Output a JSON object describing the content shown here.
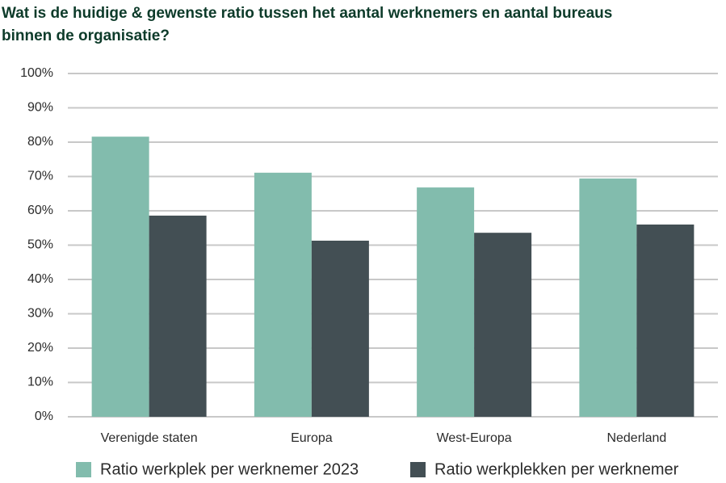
{
  "chart_data": {
    "type": "bar",
    "title": [
      "Wat is de huidige & gewenste ratio tussen het aantal werknemers en aantal bureaus",
      "binnen de organisatie?"
    ],
    "categories": [
      "Verenigde staten",
      "Europa",
      "West-Europa",
      "Nederland"
    ],
    "series": [
      {
        "name": "Ratio werkplek per werknemer 2023",
        "color": "#82bcad",
        "values": [
          81.6,
          71.1,
          66.8,
          69.4
        ]
      },
      {
        "name": "Ratio werkplekken per werknemer",
        "color": "#434f54",
        "values": [
          58.6,
          51.3,
          53.6,
          56.0
        ]
      }
    ],
    "ylim": [
      0,
      100
    ],
    "yticks": [
      {
        "value": 0,
        "label": "0%"
      },
      {
        "value": 10,
        "label": "10%"
      },
      {
        "value": 20,
        "label": "20%"
      },
      {
        "value": 30,
        "label": "30%"
      },
      {
        "value": 40,
        "label": "40%"
      },
      {
        "value": 50,
        "label": "50%"
      },
      {
        "value": 60,
        "label": "60%"
      },
      {
        "value": 70,
        "label": "70%"
      },
      {
        "value": 80,
        "label": "80%"
      },
      {
        "value": 90,
        "label": "90%"
      },
      {
        "value": 100,
        "label": "100%"
      }
    ],
    "grid": true,
    "legend": "bottom"
  }
}
